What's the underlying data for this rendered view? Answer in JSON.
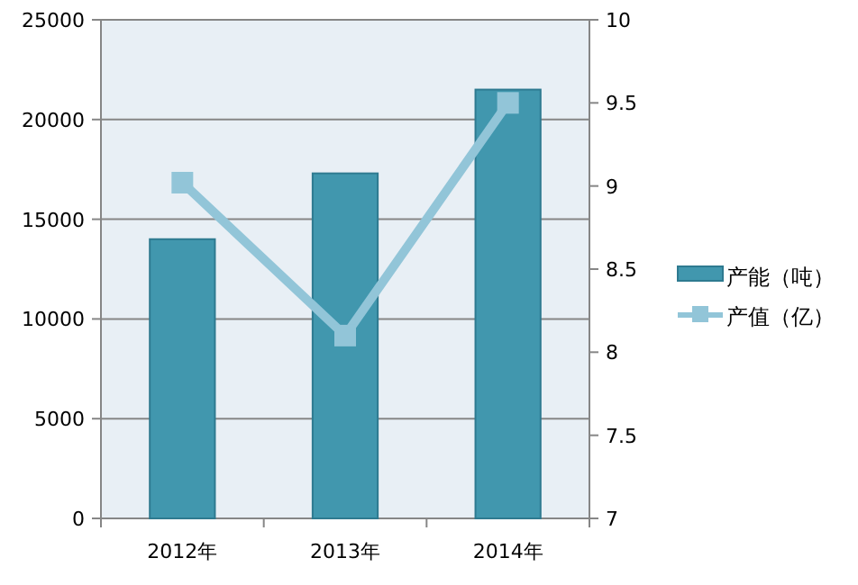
{
  "chart_data": {
    "type": "bar",
    "categories": [
      "2012年",
      "2013年",
      "2014年"
    ],
    "series": [
      {
        "name": "产能（吨）",
        "color": "#4197ae",
        "values": [
          14000,
          17300,
          21500
        ]
      },
      {
        "name": "产值（亿）",
        "type": "line",
        "axis": "y2",
        "color": "#92c5d8",
        "marker": "square",
        "values": [
          9.02,
          8.1,
          9.5
        ]
      }
    ],
    "ylim": [
      0,
      25000
    ],
    "yticks": [
      0,
      5000,
      10000,
      15000,
      20000,
      25000
    ],
    "y2lim": [
      7,
      10
    ],
    "y2ticks": [
      7,
      7.5,
      8,
      8.5,
      9,
      9.5,
      10
    ],
    "grid": "y",
    "legend": "right"
  }
}
